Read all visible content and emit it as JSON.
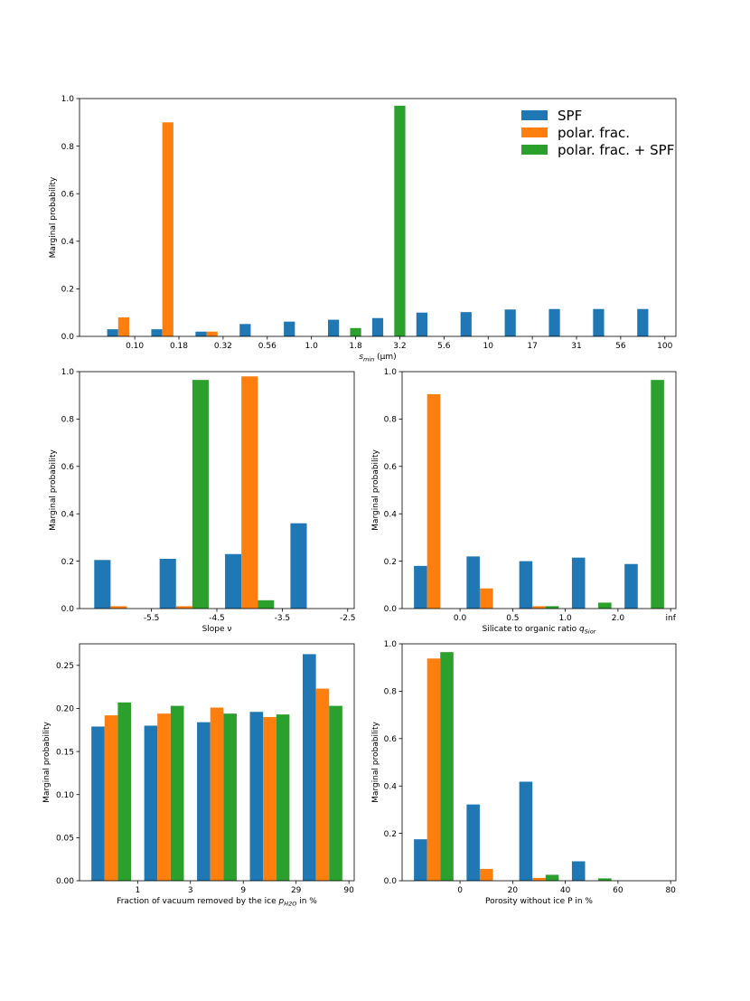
{
  "colors": {
    "SPF": "#1f77b4",
    "polar": "#ff7f0e",
    "both": "#2ca02c"
  },
  "legend": [
    "SPF",
    "polar. frac.",
    "polar. frac. + SPF"
  ],
  "chart_data": [
    {
      "id": "smin",
      "type": "bar",
      "xlabel": "s_min (μm)",
      "ylabel": "Marginal probability",
      "ylim": [
        0,
        1.0
      ],
      "yticks": [
        "0.0",
        "0.2",
        "0.4",
        "0.6",
        "0.8",
        "1.0"
      ],
      "xticks": [
        "0.10",
        "0.18",
        "0.32",
        "0.56",
        "1.0",
        "1.8",
        "3.2",
        "5.6",
        "10",
        "17",
        "31",
        "56",
        "100"
      ],
      "legend_position": "top-right",
      "series": [
        {
          "name": "SPF",
          "x": [
            0.0,
            1.0,
            2.0,
            3.0,
            4.0,
            5.0,
            6.0,
            7.0,
            8.0,
            9.0,
            10.0,
            11.0,
            12.0
          ],
          "values": [
            0.03,
            0.03,
            0.02,
            0.052,
            0.062,
            0.07,
            0.077,
            0.1,
            0.102,
            0.113,
            0.115,
            0.115,
            0.115
          ]
        },
        {
          "name": "polar. frac.",
          "x": [
            0.25,
            1.25,
            2.25
          ],
          "values": [
            0.08,
            0.9,
            0.02
          ]
        },
        {
          "name": "polar. frac. + SPF",
          "x": [
            5.5,
            6.5
          ],
          "values": [
            0.035,
            0.97
          ]
        }
      ]
    },
    {
      "id": "slope",
      "type": "bar",
      "xlabel": "Slope ν",
      "ylabel": "Marginal probability",
      "ylim": [
        0,
        1.0
      ],
      "yticks": [
        "0.0",
        "0.2",
        "0.4",
        "0.6",
        "0.8",
        "1.0"
      ],
      "xticks": [
        "-5.5",
        "-4.5",
        "-3.5",
        "-2.5"
      ],
      "series": [
        {
          "name": "SPF",
          "values": [
            0.205,
            0.21,
            0.23,
            0.36
          ]
        },
        {
          "name": "polar. frac.",
          "values": [
            0.01,
            0.01,
            0.98,
            0.0
          ]
        },
        {
          "name": "polar. frac. + SPF",
          "values": [
            0.0,
            0.965,
            0.035,
            0.0
          ]
        }
      ]
    },
    {
      "id": "qsior",
      "type": "bar",
      "xlabel": "Silicate to organic ratio q_Sior",
      "ylabel": "Marginal probability",
      "ylim": [
        0,
        1.0
      ],
      "yticks": [
        "0.0",
        "0.2",
        "0.4",
        "0.6",
        "0.8",
        "1.0"
      ],
      "xticks": [
        "0.0",
        "0.5",
        "1.0",
        "2.0",
        "inf"
      ],
      "series": [
        {
          "name": "SPF",
          "values": [
            0.18,
            0.22,
            0.2,
            0.215,
            0.188
          ]
        },
        {
          "name": "polar. frac.",
          "values": [
            0.905,
            0.085,
            0.01,
            0.0,
            0.0
          ]
        },
        {
          "name": "polar. frac. + SPF",
          "values": [
            0.0,
            0.0,
            0.01,
            0.025,
            0.965
          ]
        }
      ]
    },
    {
      "id": "ph2o",
      "type": "bar",
      "xlabel": "Fraction of vacuum removed by the ice p_H2O in %",
      "ylabel": "Marginal probability",
      "ylim": [
        0,
        0.275
      ],
      "yticks": [
        "0.00",
        "0.05",
        "0.10",
        "0.15",
        "0.20",
        "0.25"
      ],
      "ytick_values": [
        0,
        0.05,
        0.1,
        0.15,
        0.2,
        0.25
      ],
      "xticks": [
        "1",
        "3",
        "9",
        "29",
        "90"
      ],
      "series": [
        {
          "name": "SPF",
          "values": [
            0.179,
            0.18,
            0.184,
            0.196,
            0.263
          ]
        },
        {
          "name": "polar. frac.",
          "values": [
            0.192,
            0.194,
            0.201,
            0.19,
            0.223
          ]
        },
        {
          "name": "polar. frac. + SPF",
          "values": [
            0.207,
            0.203,
            0.194,
            0.193,
            0.203
          ]
        }
      ]
    },
    {
      "id": "porosity",
      "type": "bar",
      "xlabel": "Porosity without ice P in %",
      "ylabel": "Marginal probability",
      "ylim": [
        0,
        1.0
      ],
      "yticks": [
        "0.0",
        "0.2",
        "0.4",
        "0.6",
        "0.8",
        "1.0"
      ],
      "xticks": [
        "0",
        "20",
        "40",
        "60",
        "80"
      ],
      "series": [
        {
          "name": "SPF",
          "values": [
            0.175,
            0.322,
            0.418,
            0.082,
            0.0
          ]
        },
        {
          "name": "polar. frac.",
          "values": [
            0.938,
            0.05,
            0.012,
            0.0,
            0.0
          ]
        },
        {
          "name": "polar. frac. + SPF",
          "values": [
            0.965,
            0.0,
            0.025,
            0.01,
            0.0
          ]
        }
      ]
    }
  ]
}
